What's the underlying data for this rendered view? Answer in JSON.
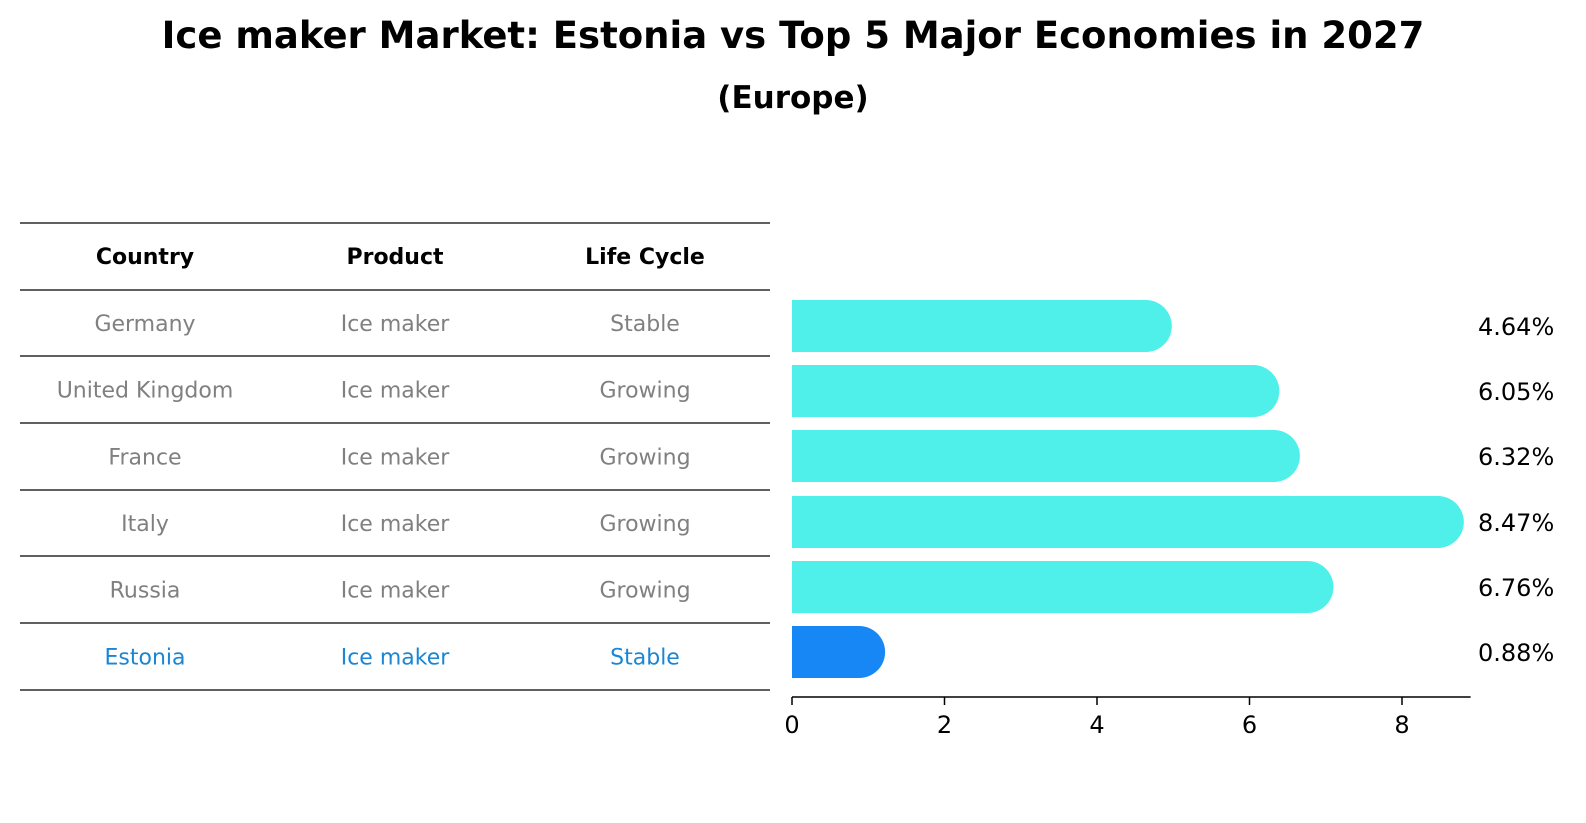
{
  "title": "Ice maker Market: Estonia vs Top 5 Major Economies in 2027",
  "subtitle": "(Europe)",
  "colors": {
    "bar": "#4FEFEA",
    "highlight": "#1787F5",
    "muted": "#808080",
    "highlight_text": "#1A86D4"
  },
  "table": {
    "headers": [
      "Country",
      "Product",
      "Life Cycle"
    ],
    "rows": [
      {
        "country": "Germany",
        "product": "Ice maker",
        "life_cycle": "Stable"
      },
      {
        "country": "United Kingdom",
        "product": "Ice maker",
        "life_cycle": "Growing"
      },
      {
        "country": "France",
        "product": "Ice maker",
        "life_cycle": "Growing"
      },
      {
        "country": "Italy",
        "product": "Ice maker",
        "life_cycle": "Growing"
      },
      {
        "country": "Russia",
        "product": "Ice maker",
        "life_cycle": "Growing"
      },
      {
        "country": "Estonia",
        "product": "Ice maker",
        "life_cycle": "Stable",
        "highlight": true
      }
    ]
  },
  "chart_data": {
    "type": "bar",
    "orientation": "horizontal",
    "categories": [
      "Germany",
      "United Kingdom",
      "France",
      "Italy",
      "Russia",
      "Estonia"
    ],
    "values": [
      4.64,
      6.05,
      6.32,
      8.47,
      6.76,
      0.88
    ],
    "value_labels": [
      "4.64%",
      "6.05%",
      "6.32%",
      "8.47%",
      "6.76%",
      "0.88%"
    ],
    "highlight_category": "Estonia",
    "xlim": [
      0,
      8.9
    ],
    "xticks": [
      0,
      2,
      4,
      6,
      8
    ],
    "xlabel": "",
    "ylabel": "",
    "grid": false
  }
}
